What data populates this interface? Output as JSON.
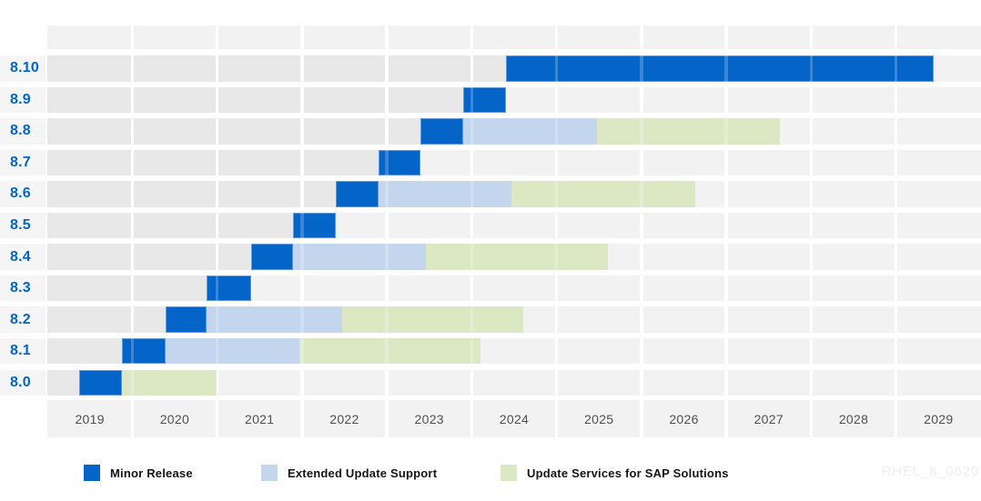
{
  "watermark": "RHEL_8_0620",
  "chart_data": {
    "type": "gantt",
    "title": "",
    "x_axis": {
      "unit": "year",
      "range": [
        2019,
        2030
      ],
      "tick_labels": [
        "2019",
        "2020",
        "2021",
        "2022",
        "2023",
        "2024",
        "2025",
        "2026",
        "2027",
        "2028",
        "2029"
      ]
    },
    "colors": {
      "minor": "#0564c8",
      "eus": "#c3d6ed",
      "sap": "#dce8c4",
      "past_bg": "#e8e8e8",
      "future_bg": "#f2f2f2",
      "label_strip_bg": "#f5f5f5",
      "row_label_text": "#0066cc",
      "axis_text": "#4f4f4f"
    },
    "legend": [
      {
        "key": "minor",
        "label": "Minor Release"
      },
      {
        "key": "eus",
        "label": "Extended Update Support"
      },
      {
        "key": "sap",
        "label": "Update Services for SAP Solutions"
      }
    ],
    "rows": [
      {
        "label": "8.10",
        "segments": [
          {
            "type": "minor",
            "start": 2024.4,
            "end": 2029.44
          }
        ]
      },
      {
        "label": "8.9",
        "segments": [
          {
            "type": "minor",
            "start": 2023.9,
            "end": 2024.4
          }
        ]
      },
      {
        "label": "8.8",
        "segments": [
          {
            "type": "minor",
            "start": 2023.4,
            "end": 2023.9
          },
          {
            "type": "eus",
            "start": 2023.9,
            "end": 2025.48
          },
          {
            "type": "sap",
            "start": 2025.48,
            "end": 2027.63
          }
        ]
      },
      {
        "label": "8.7",
        "segments": [
          {
            "type": "minor",
            "start": 2022.9,
            "end": 2023.4
          }
        ]
      },
      {
        "label": "8.6",
        "segments": [
          {
            "type": "minor",
            "start": 2022.4,
            "end": 2022.9
          },
          {
            "type": "eus",
            "start": 2022.9,
            "end": 2024.47
          },
          {
            "type": "sap",
            "start": 2024.47,
            "end": 2026.63
          }
        ]
      },
      {
        "label": "8.5",
        "segments": [
          {
            "type": "minor",
            "start": 2021.9,
            "end": 2022.4
          }
        ]
      },
      {
        "label": "8.4",
        "segments": [
          {
            "type": "minor",
            "start": 2021.4,
            "end": 2021.9
          },
          {
            "type": "eus",
            "start": 2021.9,
            "end": 2023.46
          },
          {
            "type": "sap",
            "start": 2023.46,
            "end": 2025.61
          }
        ]
      },
      {
        "label": "8.3",
        "segments": [
          {
            "type": "minor",
            "start": 2020.88,
            "end": 2021.4
          }
        ]
      },
      {
        "label": "8.2",
        "segments": [
          {
            "type": "minor",
            "start": 2020.39,
            "end": 2020.88
          },
          {
            "type": "eus",
            "start": 2020.88,
            "end": 2022.47
          },
          {
            "type": "sap",
            "start": 2022.47,
            "end": 2024.61
          }
        ]
      },
      {
        "label": "8.1",
        "segments": [
          {
            "type": "minor",
            "start": 2019.88,
            "end": 2020.39
          },
          {
            "type": "eus",
            "start": 2020.39,
            "end": 2021.97
          },
          {
            "type": "sap",
            "start": 2021.97,
            "end": 2024.1
          }
        ]
      },
      {
        "label": "8.0",
        "segments": [
          {
            "type": "minor",
            "start": 2019.37,
            "end": 2019.88
          },
          {
            "type": "sap",
            "start": 2019.88,
            "end": 2020.99
          }
        ]
      }
    ]
  }
}
